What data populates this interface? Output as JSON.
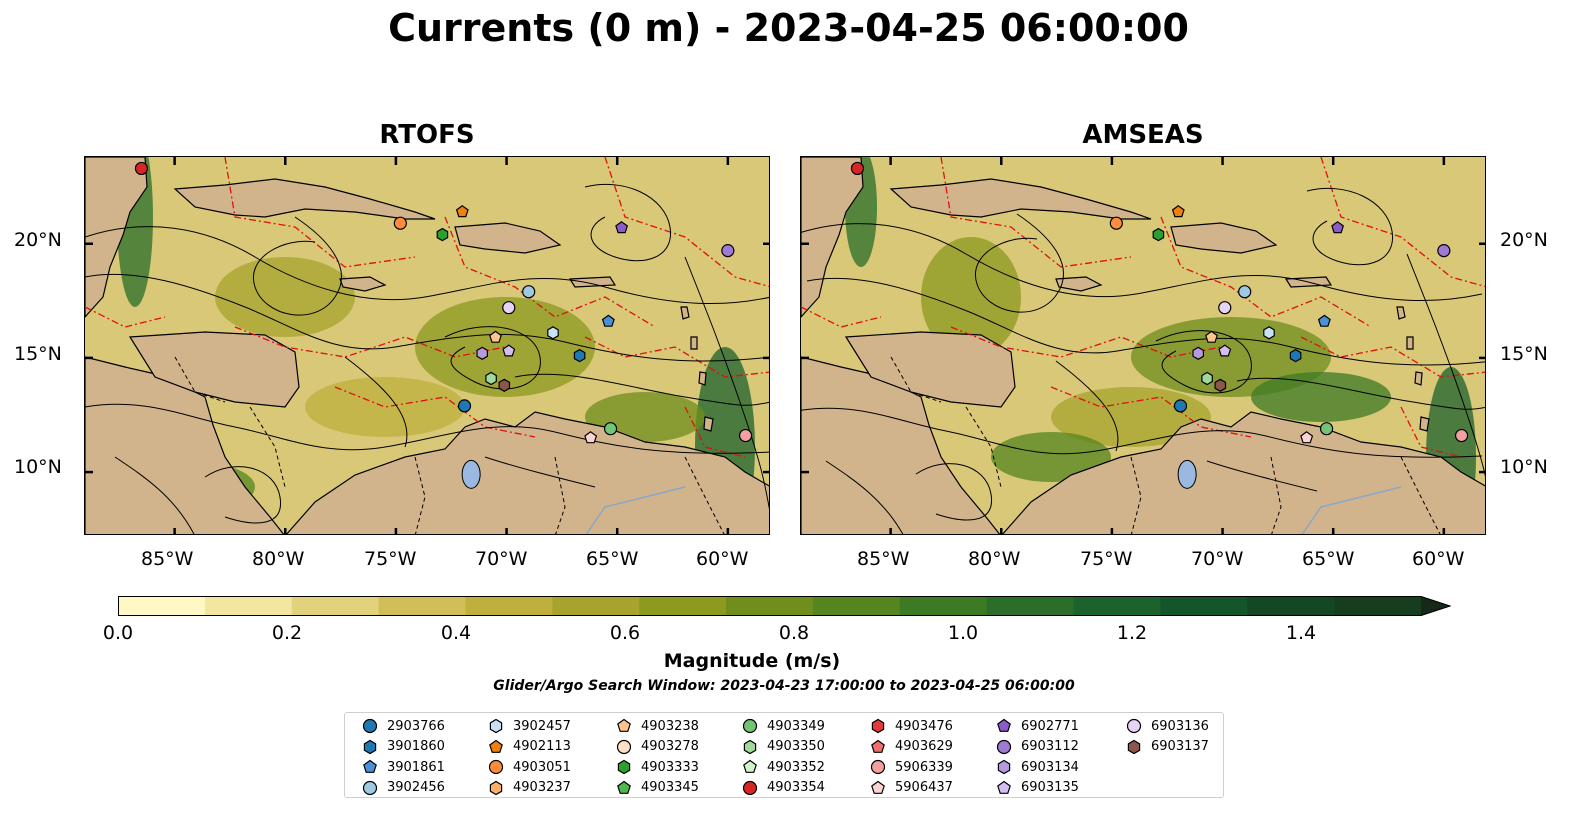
{
  "title": "Currents (0 m) - 2023-04-25 06:00:00",
  "panels": [
    {
      "id": "left",
      "title": "RTOFS"
    },
    {
      "id": "right",
      "title": "AMSEAS"
    }
  ],
  "lat_labels": [
    "20°N",
    "15°N",
    "10°N"
  ],
  "lon_labels": [
    "85°W",
    "80°W",
    "75°W",
    "70°W",
    "65°W",
    "60°W"
  ],
  "colorbar": {
    "label": "Magnitude (m/s)",
    "ticks": [
      "0.0",
      "0.2",
      "0.4",
      "0.6",
      "0.8",
      "1.0",
      "1.2",
      "1.4"
    ],
    "min": 0.0,
    "max": 1.5,
    "colors": [
      "#fff8c4",
      "#f2e6a0",
      "#e2d27c",
      "#d1be58",
      "#bfb03e",
      "#a7a32c",
      "#8c9a1e",
      "#6f8e1c",
      "#55851f",
      "#3d7a24",
      "#2a6e29",
      "#1c622c",
      "#15552a",
      "#144824",
      "#173d1f"
    ]
  },
  "search_window": "Glider/Argo Search Window: 2023-04-23 17:00:00 to 2023-04-25 06:00:00",
  "legend": [
    {
      "id": "2903766",
      "shape": "circle",
      "color": "#1f77b4"
    },
    {
      "id": "3901860",
      "shape": "hexagon",
      "color": "#1f77b4"
    },
    {
      "id": "3901861",
      "shape": "pentagon",
      "color": "#4a90d9"
    },
    {
      "id": "3902456",
      "shape": "circle",
      "color": "#9ecae1"
    },
    {
      "id": "3902457",
      "shape": "hexagon",
      "color": "#c6e2f5"
    },
    {
      "id": "4902113",
      "shape": "pentagon",
      "color": "#f07f0e"
    },
    {
      "id": "4903051",
      "shape": "circle",
      "color": "#fd8d3c"
    },
    {
      "id": "4903237",
      "shape": "hexagon",
      "color": "#fdae6b"
    },
    {
      "id": "4903238",
      "shape": "pentagon",
      "color": "#fdc48e"
    },
    {
      "id": "4903278",
      "shape": "circle",
      "color": "#fde0c5"
    },
    {
      "id": "4903333",
      "shape": "hexagon",
      "color": "#2ca02c"
    },
    {
      "id": "4903345",
      "shape": "pentagon",
      "color": "#4db84d"
    },
    {
      "id": "4903349",
      "shape": "circle",
      "color": "#74c476"
    },
    {
      "id": "4903350",
      "shape": "hexagon",
      "color": "#a1d99b"
    },
    {
      "id": "4903352",
      "shape": "pentagon",
      "color": "#d2f2cc"
    },
    {
      "id": "4903354",
      "shape": "circle",
      "color": "#d62728"
    },
    {
      "id": "4903476",
      "shape": "hexagon",
      "color": "#e3393a"
    },
    {
      "id": "4903629",
      "shape": "pentagon",
      "color": "#ef6f6f"
    },
    {
      "id": "5906339",
      "shape": "circle",
      "color": "#f4a0a0"
    },
    {
      "id": "5906437",
      "shape": "pentagon",
      "color": "#fcd3d3"
    },
    {
      "id": "6902771",
      "shape": "pentagon",
      "color": "#8e5ac8"
    },
    {
      "id": "6903112",
      "shape": "circle",
      "color": "#9e7ad2"
    },
    {
      "id": "6903134",
      "shape": "hexagon",
      "color": "#b69ae0"
    },
    {
      "id": "6903135",
      "shape": "pentagon",
      "color": "#d4bef0"
    },
    {
      "id": "6903136",
      "shape": "circle",
      "color": "#e6d4f8"
    },
    {
      "id": "6903137",
      "shape": "hexagon",
      "color": "#8c564b"
    }
  ],
  "float_markers": [
    {
      "id": "4903354",
      "shape": "circle",
      "color": "#d62728",
      "lon": -86.5,
      "lat": 23.3
    },
    {
      "id": "4903051",
      "shape": "circle",
      "color": "#fd8d3c",
      "lon": -74.8,
      "lat": 20.9
    },
    {
      "id": "4902113",
      "shape": "pentagon",
      "color": "#f07f0e",
      "lon": -72.0,
      "lat": 21.4
    },
    {
      "id": "4903333",
      "shape": "hexagon",
      "color": "#2ca02c",
      "lon": -72.9,
      "lat": 20.4
    },
    {
      "id": "6902771",
      "shape": "pentagon",
      "color": "#8e5ac8",
      "lon": -64.8,
      "lat": 20.7
    },
    {
      "id": "6903112",
      "shape": "circle",
      "color": "#9e7ad2",
      "lon": -60.0,
      "lat": 19.7
    },
    {
      "id": "3902456",
      "shape": "circle",
      "color": "#9ecae1",
      "lon": -69.0,
      "lat": 17.9
    },
    {
      "id": "6903136",
      "shape": "circle",
      "color": "#e6d4f8",
      "lon": -69.9,
      "lat": 17.2
    },
    {
      "id": "4903238",
      "shape": "pentagon",
      "color": "#fdc48e",
      "lon": -70.5,
      "lat": 15.9
    },
    {
      "id": "3902457",
      "shape": "hexagon",
      "color": "#c6e2f5",
      "lon": -67.9,
      "lat": 16.1
    },
    {
      "id": "3901861",
      "shape": "pentagon",
      "color": "#4a90d9",
      "lon": -65.4,
      "lat": 16.6
    },
    {
      "id": "6903134",
      "shape": "hexagon",
      "color": "#b69ae0",
      "lon": -71.1,
      "lat": 15.2
    },
    {
      "id": "6903135",
      "shape": "pentagon",
      "color": "#d4bef0",
      "lon": -69.9,
      "lat": 15.3
    },
    {
      "id": "3901860",
      "shape": "hexagon",
      "color": "#1f77b4",
      "lon": -66.7,
      "lat": 15.1
    },
    {
      "id": "4903350",
      "shape": "hexagon",
      "color": "#a1d99b",
      "lon": -70.7,
      "lat": 14.1
    },
    {
      "id": "6903137",
      "shape": "hexagon",
      "color": "#8c564b",
      "lon": -70.1,
      "lat": 13.8
    },
    {
      "id": "2903766",
      "shape": "circle",
      "color": "#1f77b4",
      "lon": -71.9,
      "lat": 12.9
    },
    {
      "id": "4903349",
      "shape": "circle",
      "color": "#74c476",
      "lon": -65.3,
      "lat": 11.9
    },
    {
      "id": "5906437",
      "shape": "pentagon",
      "color": "#fcd3d3",
      "lon": -66.2,
      "lat": 11.5
    },
    {
      "id": "5906339",
      "shape": "circle",
      "color": "#f4a0a0",
      "lon": -59.2,
      "lat": 11.6
    }
  ]
}
